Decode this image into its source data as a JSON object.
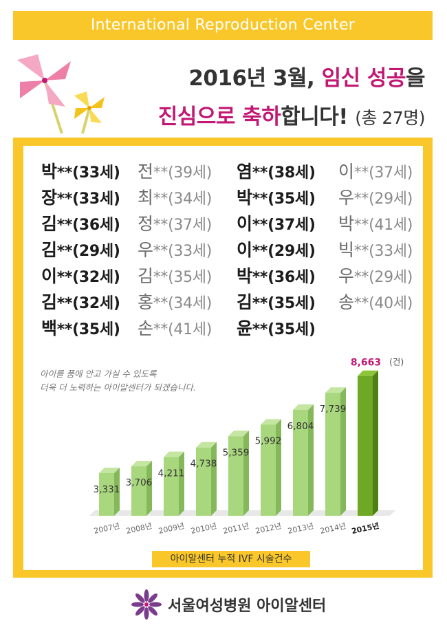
{
  "header": {
    "brand": "International Reproduction Center",
    "headline_line1_prefix": "2016년 3월, ",
    "headline_line1_accent": "임신 성공",
    "headline_line1_suffix": "을",
    "headline_line2_accent": "진심으로 축하",
    "headline_line2_mid": "합니다! ",
    "headline_line2_count": "(총 27명)"
  },
  "colors": {
    "yellow": "#f9c72a",
    "accent": "#c21874",
    "bar_light": "#a9d77d",
    "bar_dark": "#6fa824",
    "pinwheel_pink": "#f08fb0",
    "pinwheel_yellow": "#f6d23a",
    "footer_flower": "#7a3d8c"
  },
  "names": [
    [
      {
        "surname": "박",
        "rest": "**(33세)",
        "tone": "dark"
      },
      {
        "surname": "장",
        "rest": "**(33세)",
        "tone": "dark"
      },
      {
        "surname": "김",
        "rest": "**(36세)",
        "tone": "dark"
      },
      {
        "surname": "김",
        "rest": "**(29세)",
        "tone": "dark"
      },
      {
        "surname": "이",
        "rest": "**(32세)",
        "tone": "dark"
      },
      {
        "surname": "김",
        "rest": "**(32세)",
        "tone": "dark"
      },
      {
        "surname": "백",
        "rest": "**(35세)",
        "tone": "dark"
      }
    ],
    [
      {
        "surname": "전",
        "rest": "**(39세)",
        "tone": "gray"
      },
      {
        "surname": "최",
        "rest": "**(34세)",
        "tone": "gray"
      },
      {
        "surname": "정",
        "rest": "**(37세)",
        "tone": "gray"
      },
      {
        "surname": "우",
        "rest": "**(33세)",
        "tone": "gray"
      },
      {
        "surname": "김",
        "rest": "**(35세)",
        "tone": "gray"
      },
      {
        "surname": "홍",
        "rest": "**(34세)",
        "tone": "gray"
      },
      {
        "surname": "손",
        "rest": "**(41세)",
        "tone": "gray"
      }
    ],
    [
      {
        "surname": "염",
        "rest": "**(38세)",
        "tone": "dark"
      },
      {
        "surname": "박",
        "rest": "**(35세)",
        "tone": "dark"
      },
      {
        "surname": "이",
        "rest": "**(37세)",
        "tone": "dark"
      },
      {
        "surname": "이",
        "rest": "**(29세)",
        "tone": "dark"
      },
      {
        "surname": "박",
        "rest": "**(36세)",
        "tone": "dark"
      },
      {
        "surname": "김",
        "rest": "**(35세)",
        "tone": "dark"
      },
      {
        "surname": "윤",
        "rest": "**(35세)",
        "tone": "dark"
      }
    ],
    [
      {
        "surname": "이",
        "rest": "**(37세)",
        "tone": "gray"
      },
      {
        "surname": "우",
        "rest": "**(29세)",
        "tone": "gray"
      },
      {
        "surname": "박",
        "rest": "**(41세)",
        "tone": "gray"
      },
      {
        "surname": "빅",
        "rest": "**(33세)",
        "tone": "gray"
      },
      {
        "surname": "우",
        "rest": "**(29세)",
        "tone": "gray"
      },
      {
        "surname": "송",
        "rest": "**(40세)",
        "tone": "gray"
      }
    ]
  ],
  "chart_note": [
    "아이를 품에 안고 가실 수 있도록",
    "더욱 더 노력하는 아이알센터가 되겠습니다."
  ],
  "chart_data": {
    "type": "bar",
    "title": "",
    "caption": "아이알센터 누적 IVF 시술건수",
    "unit": "(건)",
    "categories": [
      "2007년",
      "2008년",
      "2009년",
      "2010년",
      "2011년",
      "2012년",
      "2013년",
      "2014년",
      "2015년"
    ],
    "values": [
      3331,
      3706,
      4211,
      4738,
      5359,
      5992,
      6804,
      7739,
      8663
    ],
    "value_labels": [
      "3,331",
      "3,706",
      "4,211",
      "4,738",
      "5,359",
      "5,992",
      "6,804",
      "7,739",
      "8,663"
    ],
    "highlight_index": 8,
    "grid": false,
    "legend": "none"
  },
  "footer": {
    "name": "서울여성병원 아이알센터"
  }
}
